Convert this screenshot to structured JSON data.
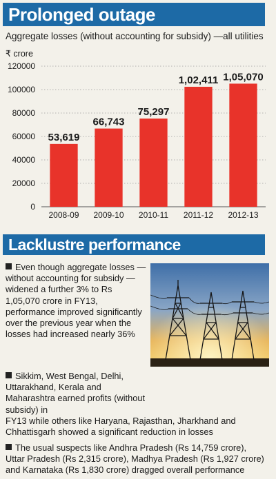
{
  "header": {
    "title": "Prolonged outage"
  },
  "chart_data": {
    "type": "bar",
    "title": "Aggregate losses (without accounting for subsidy) —all utilities",
    "ylabel": "₹ crore",
    "categories": [
      "2008-09",
      "2009-10",
      "2010-11",
      "2011-12",
      "2012-13"
    ],
    "values": [
      53619,
      66743,
      75297,
      102411,
      105070
    ],
    "value_labels": [
      "53,619",
      "66,743",
      "75,297",
      "1,02,411",
      "1,05,070"
    ],
    "yticks": [
      "120000",
      "100000",
      "80000",
      "60000",
      "40000",
      "20000",
      "0"
    ],
    "ylim": [
      0,
      120000
    ],
    "grid": true,
    "colors": {
      "bar": "#e8332a",
      "grid": "#9a9a9a"
    }
  },
  "section": {
    "title": "Lacklustre performance"
  },
  "paragraphs": {
    "p1": "Even though aggregate losses — without accounting for subsidy — widened a further 3% to Rs 1,05,070 crore in FY13, performance improved significantly over the previous year when the losses had increased nearly 36%",
    "p2a": "Sikkim, West Bengal, Delhi, Uttarakhand, Kerala and Maharashtra earned profits (without subsidy) in",
    "p2b": "FY13 while others like Haryana, Rajasthan, Jharkhand and Chhattisgarh showed a significant reduction in losses",
    "p3": "The usual suspects like Andhra Pradesh (Rs 14,759 crore), Uttar Pradesh (Rs 2,315 crore), Madhya Pradesh (Rs 1,927 crore) and Karnataka (Rs 1,830 crore) dragged overall performance"
  },
  "photo": {
    "icon": "power-transmission-towers-photo"
  }
}
